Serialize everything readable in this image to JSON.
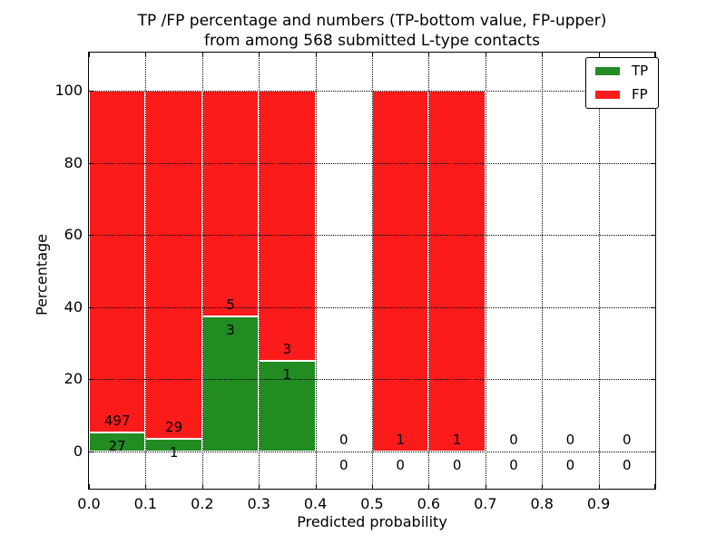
{
  "figure": {
    "title_line1": "TP /FP percentage and numbers (TP-bottom value, FP-upper)",
    "title_line2": "from among 568 submitted L-type contacts"
  },
  "axes": {
    "x_label": "Predicted probability",
    "y_label": "Percentage",
    "x_tick_labels": [
      "0.0",
      "0.1",
      "0.2",
      "0.3",
      "0.4",
      "0.5",
      "0.6",
      "0.7",
      "0.8",
      "0.9"
    ],
    "x_tick_values": [
      0.0,
      0.1,
      0.2,
      0.3,
      0.4,
      0.5,
      0.6,
      0.7,
      0.8,
      0.9
    ],
    "y_tick_labels": [
      "0",
      "20",
      "40",
      "60",
      "80",
      "100"
    ],
    "y_tick_values": [
      0,
      20,
      40,
      60,
      80,
      100
    ],
    "xlim": [
      0.0,
      1.0
    ],
    "ylim": [
      -10.4,
      110.7
    ],
    "grid": "dotted"
  },
  "legend": {
    "position": "upper-right",
    "items": [
      {
        "label": "TP",
        "color": "#228b22"
      },
      {
        "label": "FP",
        "color": "#fb1b1b"
      }
    ]
  },
  "colors": {
    "tp": "#228b22",
    "fp": "#fb1b1b",
    "grid": "#000000",
    "text": "#000000",
    "background": "#ffffff"
  },
  "chart_data": {
    "type": "bar",
    "stacked": true,
    "normalized_to_percent": true,
    "title": "TP /FP percentage and numbers (TP-bottom value, FP-upper) from among 568 submitted L-type contacts",
    "xlabel": "Predicted probability",
    "ylabel": "Percentage",
    "xlim": [
      0.0,
      1.0
    ],
    "ylim": [
      -10.4,
      110.7
    ],
    "total_contacts": 568,
    "bin_width": 0.1,
    "bin_starts": [
      0.0,
      0.1,
      0.2,
      0.3,
      0.4,
      0.5,
      0.6,
      0.7,
      0.8,
      0.9
    ],
    "series": [
      {
        "name": "TP",
        "color": "#228b22",
        "counts": [
          27,
          1,
          3,
          1,
          0,
          0,
          0,
          0,
          0,
          0
        ],
        "percent": [
          5.15,
          3.33,
          37.5,
          25.0,
          0,
          0,
          0,
          0,
          0,
          0
        ]
      },
      {
        "name": "FP",
        "color": "#fb1b1b",
        "counts": [
          497,
          29,
          5,
          3,
          0,
          1,
          1,
          0,
          0,
          0
        ],
        "percent": [
          94.85,
          96.67,
          62.5,
          75.0,
          0,
          100,
          100,
          0,
          0,
          0
        ]
      }
    ],
    "annotation_note": "TP count printed below the TP/FP boundary, FP count printed above it, for every bin"
  }
}
